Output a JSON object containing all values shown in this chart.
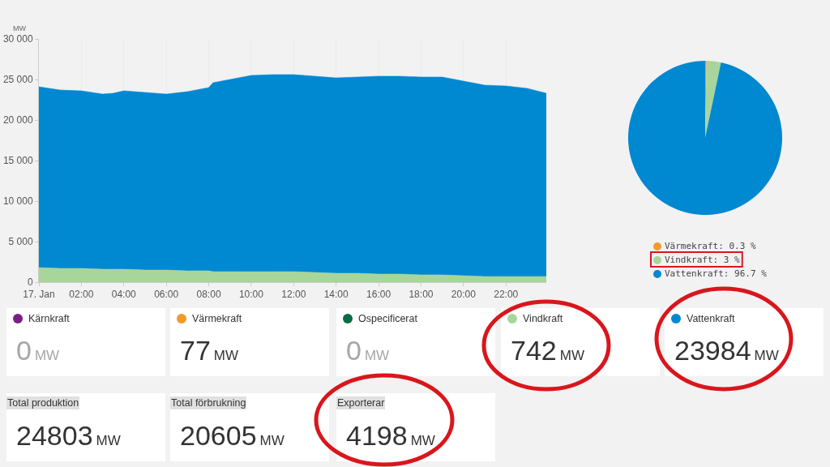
{
  "chart_data": [
    {
      "type": "area",
      "stacked": true,
      "ylabel": "MW",
      "x": [
        0,
        1,
        2,
        3,
        3.5,
        4,
        5,
        6,
        7,
        8,
        8.2,
        9,
        10,
        11,
        12,
        13,
        14,
        15,
        16,
        17,
        18,
        19,
        20,
        21,
        22,
        23,
        23.9
      ],
      "series": [
        {
          "color": "#a8d59a",
          "values": [
            1800,
            1700,
            1700,
            1600,
            1600,
            1600,
            1500,
            1500,
            1400,
            1400,
            1300,
            1300,
            1300,
            1300,
            1300,
            1200,
            1100,
            1100,
            1000,
            1000,
            900,
            900,
            800,
            700,
            700,
            700,
            700
          ]
        },
        {
          "color": "#0088d1",
          "values": [
            22300,
            22000,
            21900,
            21600,
            21700,
            22000,
            21900,
            21700,
            22100,
            22600,
            23300,
            23700,
            24200,
            24300,
            24300,
            24200,
            24100,
            24200,
            24400,
            24400,
            24400,
            24400,
            24000,
            23600,
            23500,
            23200,
            22600
          ]
        }
      ],
      "xlim": [
        0,
        23.9
      ],
      "ylim": [
        0,
        30000
      ],
      "xticks": [
        {
          "value": 0,
          "label": "17. Jan"
        },
        {
          "value": 2,
          "label": "02:00"
        },
        {
          "value": 4,
          "label": "04:00"
        },
        {
          "value": 6,
          "label": "06:00"
        },
        {
          "value": 8,
          "label": "08:00"
        },
        {
          "value": 10,
          "label": "10:00"
        },
        {
          "value": 12,
          "label": "12:00"
        },
        {
          "value": 14,
          "label": "14:00"
        },
        {
          "value": 16,
          "label": "16:00"
        },
        {
          "value": 18,
          "label": "18:00"
        },
        {
          "value": 20,
          "label": "20:00"
        },
        {
          "value": 22,
          "label": "22:00"
        }
      ],
      "yticks": [
        {
          "value": 0,
          "label": "0"
        },
        {
          "value": 5000,
          "label": "5 000"
        },
        {
          "value": 10000,
          "label": "10 000"
        },
        {
          "value": 15000,
          "label": "15 000"
        },
        {
          "value": 20000,
          "label": "20 000"
        },
        {
          "value": 25000,
          "label": "25 000"
        },
        {
          "value": 30000,
          "label": "30 000"
        }
      ],
      "grid": "x"
    },
    {
      "type": "pie",
      "categories": [
        "Värmekraft",
        "Vindkraft",
        "Vattenkraft"
      ],
      "values": [
        0.3,
        3,
        96.7
      ],
      "value_labels": [
        "0.3 %",
        "3 %",
        "96.7 %"
      ],
      "colors": [
        "#f39a2b",
        "#a8d59a",
        "#0088d1"
      ],
      "legend": "bottom"
    },
    {
      "type": "other",
      "ylabel": "MW",
      "data_labels": true,
      "categories": [
        "Kärnkraft",
        "Värmekraft",
        "Ospecificerat",
        "Vindkraft",
        "Vattenkraft",
        "Total produktion",
        "Total förbrukning",
        "Exporterar"
      ],
      "values": [
        0,
        77,
        0,
        742,
        23984,
        24803,
        20605,
        4198
      ]
    }
  ]
}
